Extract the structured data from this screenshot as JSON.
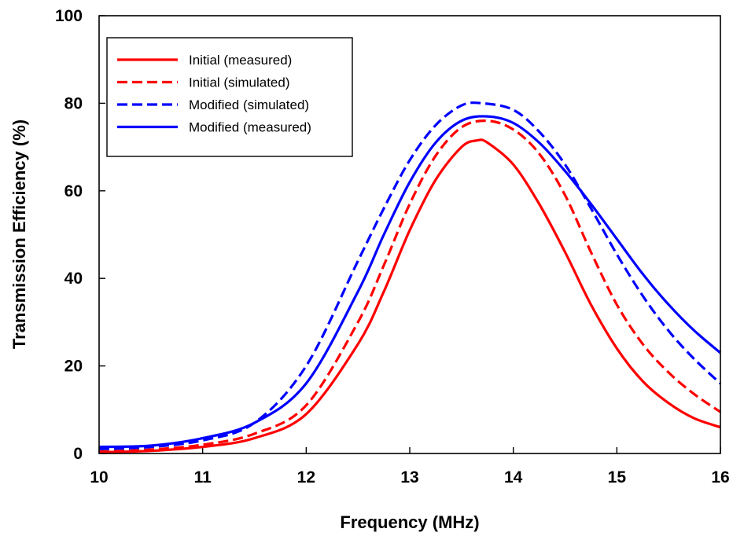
{
  "chart_data": {
    "type": "line",
    "xlabel": "Frequency (MHz)",
    "ylabel": "Transmission Efficiency (%)",
    "xlim": [
      10,
      16
    ],
    "ylim": [
      0,
      100
    ],
    "x_ticks": [
      10,
      11,
      12,
      13,
      14,
      15,
      16
    ],
    "y_ticks": [
      0,
      20,
      40,
      60,
      80,
      100
    ],
    "grid": false,
    "legend_position": "top-left",
    "series": [
      {
        "name": "Initial (measured)",
        "color": "#ff0000",
        "style": "solid",
        "x": [
          10.0,
          10.5,
          11.0,
          11.5,
          12.0,
          12.5,
          12.75,
          13.0,
          13.25,
          13.5,
          13.65,
          13.75,
          14.0,
          14.25,
          14.5,
          14.75,
          15.0,
          15.25,
          15.5,
          15.75,
          16.0
        ],
        "y": [
          0.3,
          0.6,
          1.5,
          3.5,
          9.0,
          25.0,
          37.0,
          51.0,
          62.5,
          70.0,
          71.5,
          71.0,
          66.0,
          57.0,
          46.0,
          34.0,
          24.0,
          16.5,
          11.5,
          8.0,
          6.0
        ]
      },
      {
        "name": "Initial (simulated)",
        "color": "#ff0000",
        "style": "dashed",
        "x": [
          10.0,
          10.5,
          11.0,
          11.5,
          12.0,
          12.5,
          12.75,
          13.0,
          13.25,
          13.5,
          13.75,
          14.0,
          14.25,
          14.5,
          14.75,
          15.0,
          15.25,
          15.5,
          15.75,
          16.0
        ],
        "y": [
          0.4,
          0.9,
          2.0,
          4.5,
          11.0,
          30.0,
          43.0,
          57.0,
          68.0,
          74.5,
          76.0,
          74.0,
          68.5,
          59.0,
          46.0,
          34.0,
          25.0,
          18.5,
          13.5,
          9.5
        ]
      },
      {
        "name": "Modified (simulated)",
        "color": "#0000ff",
        "style": "dashed",
        "x": [
          10.0,
          10.5,
          11.0,
          11.5,
          12.0,
          12.5,
          12.75,
          13.0,
          13.25,
          13.5,
          13.7,
          14.0,
          14.25,
          14.5,
          14.75,
          15.0,
          15.25,
          15.5,
          15.75,
          16.0
        ],
        "y": [
          1.0,
          1.5,
          3.0,
          7.0,
          20.0,
          44.0,
          56.0,
          67.0,
          75.0,
          79.5,
          80.0,
          78.5,
          73.5,
          66.0,
          56.0,
          45.5,
          36.0,
          28.0,
          21.5,
          16.0
        ]
      },
      {
        "name": "Modified (measured)",
        "color": "#0000ff",
        "style": "solid",
        "x": [
          10.0,
          10.5,
          11.0,
          11.5,
          12.0,
          12.5,
          12.75,
          13.0,
          13.25,
          13.5,
          13.75,
          14.0,
          14.25,
          14.5,
          14.75,
          15.0,
          15.25,
          15.5,
          15.75,
          16.0
        ],
        "y": [
          1.5,
          1.8,
          3.5,
          7.0,
          16.0,
          37.0,
          50.0,
          62.0,
          71.0,
          76.0,
          77.0,
          75.5,
          71.0,
          64.5,
          57.0,
          49.0,
          41.0,
          34.0,
          28.0,
          23.0
        ]
      }
    ]
  }
}
